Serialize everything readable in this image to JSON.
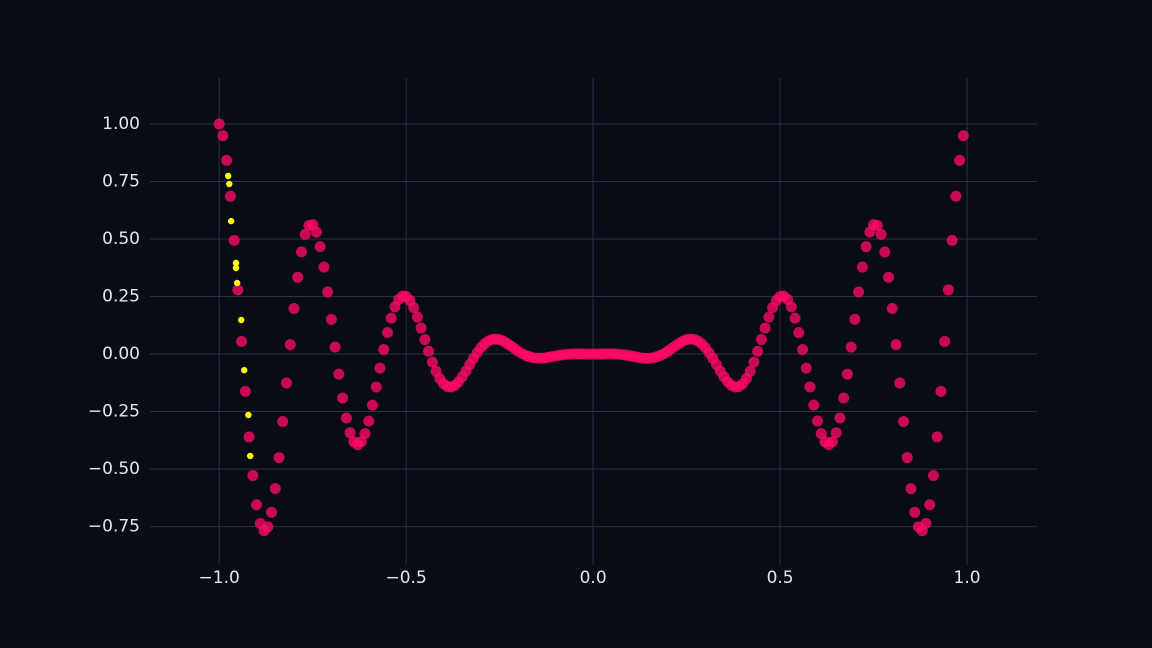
{
  "chart_data": {
    "type": "scatter",
    "xlim": [
      -1.185,
      1.187
    ],
    "ylim": [
      -0.917,
      1.2
    ],
    "xticks": [
      {
        "value": -1,
        "label": "−1.0"
      },
      {
        "value": -0.5,
        "label": "−0.5"
      },
      {
        "value": 0,
        "label": "0.0"
      },
      {
        "value": 0.5,
        "label": "0.5"
      },
      {
        "value": 1,
        "label": "1.0"
      }
    ],
    "yticks": [
      {
        "value": -0.75,
        "label": "−0.75"
      },
      {
        "value": -0.5,
        "label": "−0.50"
      },
      {
        "value": -0.25,
        "label": "−0.25"
      },
      {
        "value": 0,
        "label": "0.00"
      },
      0.25,
      {
        "value": 0.5,
        "label": "0.50"
      },
      0.75,
      {
        "value": 1,
        "label": "1.00"
      }
    ],
    "grid": true,
    "series": [
      {
        "color": "#ff0a64",
        "x": [
          -1,
          -0.99,
          -0.98,
          -0.97,
          -0.96,
          -0.95,
          -0.94,
          -0.93,
          -0.92,
          -0.91,
          -0.9,
          -0.89,
          -0.88,
          -0.87,
          -0.86,
          -0.85,
          -0.84,
          -0.83,
          -0.82,
          -0.81,
          -0.8,
          -0.79,
          -0.78,
          -0.77,
          -0.76,
          -0.75,
          -0.74,
          -0.73,
          -0.72,
          -0.71,
          -0.7,
          -0.69,
          -0.68,
          -0.67,
          -0.66,
          -0.65,
          -0.64,
          -0.63,
          -0.62,
          -0.61,
          -0.6,
          -0.59,
          -0.58,
          -0.57,
          -0.56,
          -0.55,
          -0.54,
          -0.53,
          -0.52,
          -0.51,
          -0.5,
          -0.49,
          -0.48,
          -0.47,
          -0.46,
          -0.45,
          -0.44,
          -0.43,
          -0.42,
          -0.41,
          -0.4,
          -0.39,
          -0.38,
          -0.37,
          -0.36,
          -0.35,
          -0.34,
          -0.33,
          -0.32,
          -0.31,
          -0.3,
          -0.29,
          -0.28,
          -0.27,
          -0.26,
          -0.25,
          -0.24,
          -0.23,
          -0.22,
          -0.21,
          -0.2,
          -0.19,
          -0.18,
          -0.17,
          -0.16,
          -0.15,
          -0.14,
          -0.13,
          -0.12,
          -0.11,
          -0.1,
          -0.09,
          -0.08,
          -0.07,
          -0.06,
          -0.05,
          -0.04,
          -0.03,
          -0.02,
          -0.01,
          0,
          0.01,
          0.02,
          0.03,
          0.04,
          0.05,
          0.06,
          0.07,
          0.08,
          0.09,
          0.1,
          0.11,
          0.12,
          0.13,
          0.14,
          0.15,
          0.16,
          0.17,
          0.18,
          0.19,
          0.2,
          0.21,
          0.22,
          0.23,
          0.24,
          0.25,
          0.26,
          0.27,
          0.28,
          0.29,
          0.3,
          0.31,
          0.32,
          0.33,
          0.34,
          0.35,
          0.36,
          0.37,
          0.38,
          0.39,
          0.4,
          0.41,
          0.42,
          0.43,
          0.44,
          0.45,
          0.46,
          0.47,
          0.48,
          0.49,
          0.5,
          0.51,
          0.52,
          0.53,
          0.54,
          0.55,
          0.56,
          0.57,
          0.58,
          0.59,
          0.6,
          0.61,
          0.62,
          0.63,
          0.64,
          0.65,
          0.66,
          0.67,
          0.68,
          0.69,
          0.7,
          0.71,
          0.72,
          0.73,
          0.74,
          0.75,
          0.76,
          0.77,
          0.78,
          0.79,
          0.8,
          0.81,
          0.82,
          0.83,
          0.84,
          0.85,
          0.86,
          0.87,
          0.88,
          0.89,
          0.9,
          0.91,
          0.92,
          0.93,
          0.94,
          0.95,
          0.96,
          0.97,
          0.98,
          0.99
        ],
        "values": [
          1,
          0.949,
          0.842,
          0.686,
          0.494,
          0.279,
          0.055,
          -0.162,
          -0.36,
          -0.528,
          -0.655,
          -0.736,
          -0.768,
          -0.751,
          -0.688,
          -0.585,
          -0.45,
          -0.293,
          -0.126,
          0.041,
          0.198,
          0.334,
          0.444,
          0.52,
          0.559,
          0.5625,
          0.53,
          0.467,
          0.378,
          0.27,
          0.151,
          0.03,
          -0.087,
          -0.191,
          -0.278,
          -0.342,
          -0.381,
          -0.394,
          -0.381,
          -0.346,
          -0.291,
          -0.222,
          -0.143,
          -0.061,
          0.02,
          0.093,
          0.156,
          0.205,
          0.237,
          0.252,
          0.25,
          0.233,
          0.202,
          0.161,
          0.113,
          0.063,
          0.012,
          -0.035,
          -0.075,
          -0.107,
          -0.129,
          -0.141,
          -0.143,
          -0.136,
          -0.121,
          -0.099,
          -0.074,
          -0.046,
          -0.019,
          0.006,
          0.028,
          0.045,
          0.057,
          0.064,
          0.065,
          0.063,
          0.056,
          0.046,
          0.035,
          0.024,
          0.012,
          0.002,
          -0.006,
          -0.012,
          -0.016,
          -0.018,
          -0.018,
          -0.017,
          -0.014,
          -0.011,
          -0.008,
          -0.005,
          -0.003,
          -0.001,
          0,
          0.001,
          0.001,
          0.001,
          0,
          0,
          0,
          0,
          0,
          0.001,
          0.001,
          0.001,
          0,
          -0.001,
          -0.003,
          -0.005,
          -0.008,
          -0.011,
          -0.014,
          -0.017,
          -0.018,
          -0.018,
          -0.016,
          -0.012,
          -0.006,
          0.002,
          0.012,
          0.024,
          0.035,
          0.046,
          0.056,
          0.063,
          0.065,
          0.064,
          0.057,
          0.045,
          0.028,
          0.006,
          -0.019,
          -0.046,
          -0.074,
          -0.099,
          -0.121,
          -0.136,
          -0.143,
          -0.141,
          -0.129,
          -0.107,
          -0.075,
          -0.035,
          0.012,
          0.063,
          0.113,
          0.161,
          0.202,
          0.233,
          0.25,
          0.252,
          0.237,
          0.205,
          0.156,
          0.093,
          0.02,
          -0.061,
          -0.143,
          -0.222,
          -0.291,
          -0.346,
          -0.381,
          -0.394,
          -0.381,
          -0.342,
          -0.278,
          -0.191,
          -0.087,
          0.03,
          0.151,
          0.27,
          0.378,
          0.467,
          0.53,
          0.5625,
          0.559,
          0.52,
          0.444,
          0.334,
          0.198,
          0.041,
          -0.126,
          -0.293,
          -0.45,
          -0.585,
          -0.688,
          -0.751,
          -0.768,
          -0.736,
          -0.655,
          -0.528,
          -0.36,
          -0.162,
          0.055,
          0.279,
          0.494,
          0.686,
          0.842,
          0.949
        ]
      },
      {
        "color": "#ffff00",
        "x": [
          -0.976,
          -0.973,
          -0.968,
          -0.955,
          -0.955,
          -0.952,
          -0.941,
          -0.933,
          -0.922,
          -0.917
        ],
        "values": [
          0.774,
          0.739,
          0.578,
          0.396,
          0.374,
          0.309,
          0.148,
          -0.07,
          -0.265,
          -0.443
        ]
      }
    ]
  }
}
